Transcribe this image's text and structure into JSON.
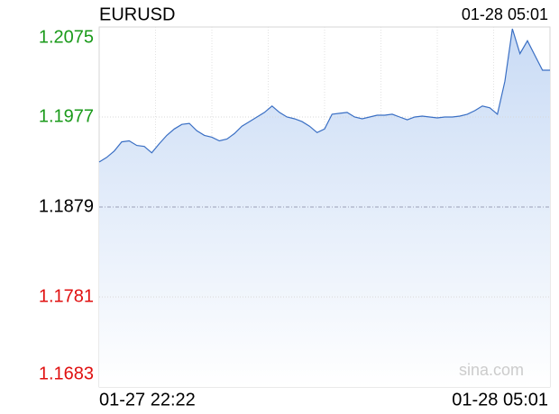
{
  "chart_data": {
    "type": "line",
    "title": "EURUSD",
    "time": "01-28 05:01",
    "watermark": "sina.com",
    "categories": [
      "01-27 22:22",
      null,
      null,
      null,
      null,
      null,
      null,
      null,
      null,
      null,
      null,
      null,
      null,
      null,
      null,
      null,
      null,
      null,
      null,
      null,
      null,
      null,
      null,
      null,
      null,
      null,
      null,
      null,
      null,
      null,
      null,
      null,
      null,
      null,
      null,
      null,
      null,
      null,
      null,
      null,
      null,
      null,
      null,
      null,
      null,
      null,
      null,
      null,
      null,
      null,
      null,
      null,
      null,
      null,
      null,
      null,
      null,
      null,
      null,
      null,
      "01-28 05:01"
    ],
    "values": [
      1.1928,
      1.1933,
      1.194,
      1.195,
      1.1951,
      1.1946,
      1.1945,
      1.1938,
      1.1948,
      1.1957,
      1.1964,
      1.1969,
      1.197,
      1.1962,
      1.1957,
      1.1955,
      1.1951,
      1.1953,
      1.1959,
      1.1967,
      1.1972,
      1.1977,
      1.1982,
      1.1989,
      1.1982,
      1.1977,
      1.1975,
      1.1972,
      1.1967,
      1.196,
      1.1964,
      1.198,
      1.1981,
      1.1982,
      1.1977,
      1.1975,
      1.1977,
      1.1979,
      1.1979,
      1.198,
      1.1977,
      1.1974,
      1.1977,
      1.1978,
      1.1977,
      1.1976,
      1.1977,
      1.1977,
      1.1978,
      1.198,
      1.1984,
      1.1989,
      1.1987,
      1.198,
      1.2016,
      1.2073,
      1.2046,
      1.206,
      1.2044,
      1.2028,
      1.2028
    ],
    "color": "#3a6fc4",
    "ylim": [
      1.1683,
      1.2075
    ],
    "yticks": [
      1.1683,
      1.1781,
      1.1879,
      1.1977,
      1.2075
    ],
    "up_color": "#1a9a1a",
    "down_color": "#e01010",
    "flat_color": "#000000",
    "grid": true
  }
}
